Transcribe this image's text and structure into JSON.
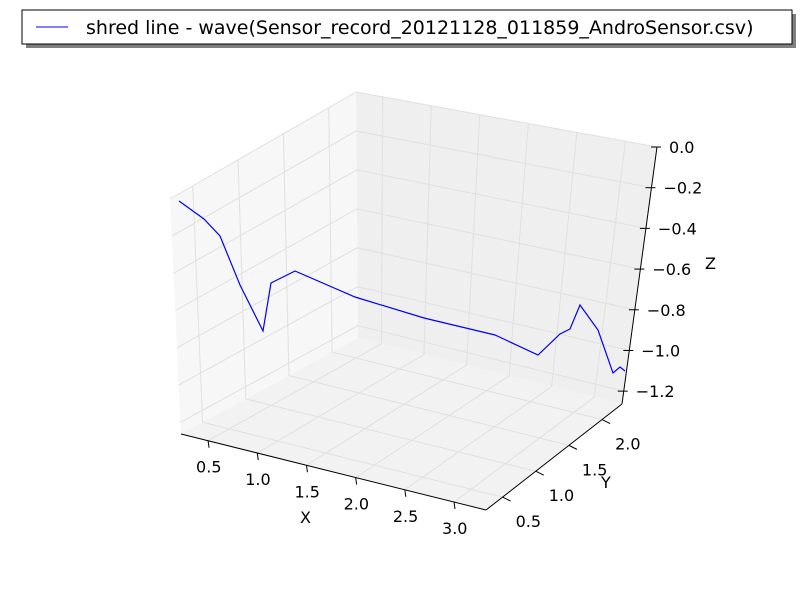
{
  "chart_data": {
    "type": "line",
    "projection": "3d",
    "title": "",
    "xlabel": "X",
    "ylabel": "Y",
    "zlabel": "Z",
    "x_ticks": [
      "0.5",
      "1.0",
      "1.5",
      "2.0",
      "2.5",
      "3.0"
    ],
    "y_ticks": [
      "0.5",
      "1.0",
      "1.5",
      "2.0"
    ],
    "z_ticks": [
      "0.0",
      "−0.2",
      "−0.4",
      "−0.6",
      "−0.8",
      "−1.0",
      "−1.2"
    ],
    "xlim": [
      0.1,
      3.4
    ],
    "ylim": [
      0.1,
      2.35
    ],
    "zlim": [
      -1.22,
      0.0
    ],
    "grid": true,
    "legend": "top",
    "series": [
      {
        "name": "shred line - wave(Sensor_record_20121128_011859_AndroSensor.csv)",
        "color": "#0000ff",
        "screen_path": [
          [
            179,
            201
          ],
          [
            204,
            219
          ],
          [
            220,
            236
          ],
          [
            240,
            285
          ],
          [
            263,
            331
          ],
          [
            271,
            283
          ],
          [
            295,
            271
          ],
          [
            355,
            297
          ],
          [
            424,
            318
          ],
          [
            495,
            335
          ],
          [
            538,
            355
          ],
          [
            560,
            334
          ],
          [
            570,
            329
          ],
          [
            580,
            305
          ],
          [
            598,
            330
          ],
          [
            613,
            373
          ],
          [
            620,
            367
          ],
          [
            625,
            371
          ]
        ]
      }
    ]
  }
}
